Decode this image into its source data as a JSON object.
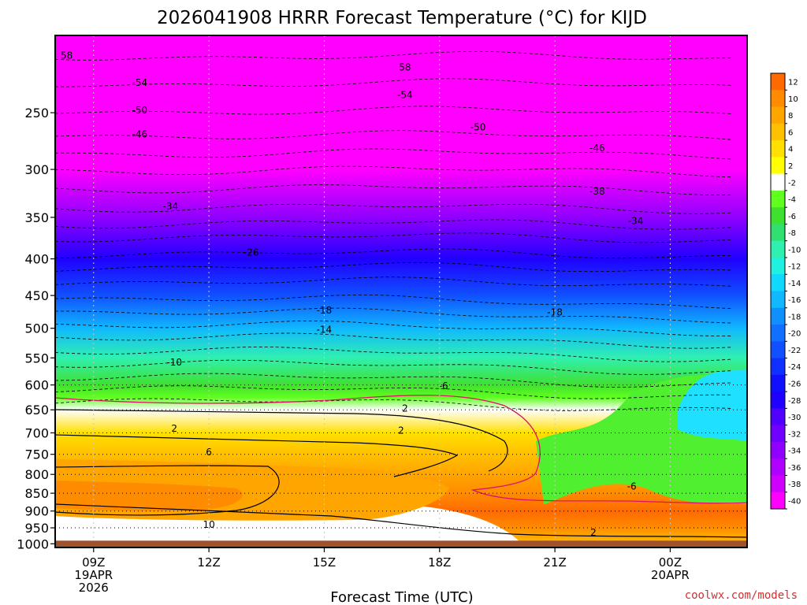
{
  "chart_data": {
    "type": "heatmap",
    "title": "2026041908 HRRR Forecast Temperature (°C) for KIJD",
    "xlabel": "Forecast Time (UTC)",
    "ylabel": "",
    "credit": "coolwx.com/models",
    "y_axis": {
      "scale": "log",
      "unit": "hPa",
      "ticks": [
        250,
        300,
        350,
        400,
        450,
        500,
        550,
        600,
        650,
        700,
        750,
        800,
        850,
        900,
        950,
        1000
      ],
      "range": [
        1012,
        195
      ]
    },
    "x_axis": {
      "range_hours": [
        8,
        26
      ],
      "ticks": [
        {
          "hour": 9,
          "label": "09Z",
          "sub1": "19APR",
          "sub2": "2026"
        },
        {
          "hour": 12,
          "label": "12Z",
          "sub1": "",
          "sub2": ""
        },
        {
          "hour": 15,
          "label": "15Z",
          "sub1": "",
          "sub2": ""
        },
        {
          "hour": 18,
          "label": "18Z",
          "sub1": "",
          "sub2": ""
        },
        {
          "hour": 21,
          "label": "21Z",
          "sub1": "",
          "sub2": ""
        },
        {
          "hour": 24,
          "label": "00Z",
          "sub1": "20APR",
          "sub2": ""
        }
      ]
    },
    "colorbar": {
      "labels": [
        "12",
        "10",
        "8",
        "6",
        "4",
        "2",
        "-2",
        "-4",
        "-6",
        "-8",
        "-10",
        "-12",
        "-14",
        "-16",
        "-18",
        "-20",
        "-22",
        "-24",
        "-26",
        "-28",
        "-30",
        "-32",
        "-34",
        "-36",
        "-38",
        "-40"
      ],
      "colors": [
        "#ff6a00",
        "#ff8c00",
        "#ffa500",
        "#ffc000",
        "#ffe000",
        "#ffff00",
        "#ffffff",
        "#60ff20",
        "#40e030",
        "#30e070",
        "#30f0b0",
        "#20f0e0",
        "#10d8ff",
        "#10b8ff",
        "#1090ff",
        "#1070ff",
        "#1050ff",
        "#1030ff",
        "#1010ff",
        "#2000ff",
        "#5000ff",
        "#7000ff",
        "#9000ff",
        "#b000ff",
        "#d000ff",
        "#ff00ff"
      ]
    },
    "ground": {
      "color": "#a0522d",
      "pressure_top": 990
    },
    "temperature_profile": [
      {
        "p": 200,
        "t": -58
      },
      {
        "p": 250,
        "t": -50
      },
      {
        "p": 300,
        "t": -42
      },
      {
        "p": 350,
        "t": -34
      },
      {
        "p": 400,
        "t": -27
      },
      {
        "p": 450,
        "t": -21
      },
      {
        "p": 500,
        "t": -15
      },
      {
        "p": 550,
        "t": -10
      },
      {
        "p": 600,
        "t": -6
      },
      {
        "p": 625,
        "t": -4
      },
      {
        "p": 650,
        "t": 0
      },
      {
        "p": 700,
        "t": 3
      },
      {
        "p": 750,
        "t": 6
      },
      {
        "p": 800,
        "t": 8
      },
      {
        "p": 850,
        "t": 10
      },
      {
        "p": 900,
        "t": 11
      },
      {
        "p": 950,
        "t": 9
      },
      {
        "p": 1000,
        "t": 6
      }
    ],
    "contour_labels": [
      {
        "value": "58",
        "hour": 8.3,
        "p": 208
      },
      {
        "value": "-54",
        "hour": 10.2,
        "p": 227
      },
      {
        "value": "-50",
        "hour": 10.2,
        "p": 248
      },
      {
        "value": "-46",
        "hour": 10.2,
        "p": 268
      },
      {
        "value": "58",
        "hour": 17.1,
        "p": 216
      },
      {
        "value": "-54",
        "hour": 17.1,
        "p": 236
      },
      {
        "value": "-50",
        "hour": 19.0,
        "p": 262
      },
      {
        "value": "-46",
        "hour": 22.1,
        "p": 280
      },
      {
        "value": "-38",
        "hour": 22.1,
        "p": 322
      },
      {
        "value": "-34",
        "hour": 11.0,
        "p": 338
      },
      {
        "value": "-34",
        "hour": 23.1,
        "p": 354
      },
      {
        "value": "-26",
        "hour": 13.1,
        "p": 392
      },
      {
        "value": "-18",
        "hour": 15.0,
        "p": 472
      },
      {
        "value": "-18",
        "hour": 21.0,
        "p": 475
      },
      {
        "value": "-14",
        "hour": 15.0,
        "p": 502
      },
      {
        "value": "-10",
        "hour": 11.1,
        "p": 558
      },
      {
        "value": "-6",
        "hour": 18.1,
        "p": 602
      },
      {
        "value": "2",
        "hour": 17.1,
        "p": 647
      },
      {
        "value": "2",
        "hour": 11.1,
        "p": 690
      },
      {
        "value": "2",
        "hour": 17.0,
        "p": 695
      },
      {
        "value": "-6",
        "hour": 23.0,
        "p": 832
      },
      {
        "value": "6",
        "hour": 12.0,
        "p": 745
      },
      {
        "value": "10",
        "hour": 12.0,
        "p": 940
      },
      {
        "value": "2",
        "hour": 22.0,
        "p": 965
      }
    ]
  }
}
